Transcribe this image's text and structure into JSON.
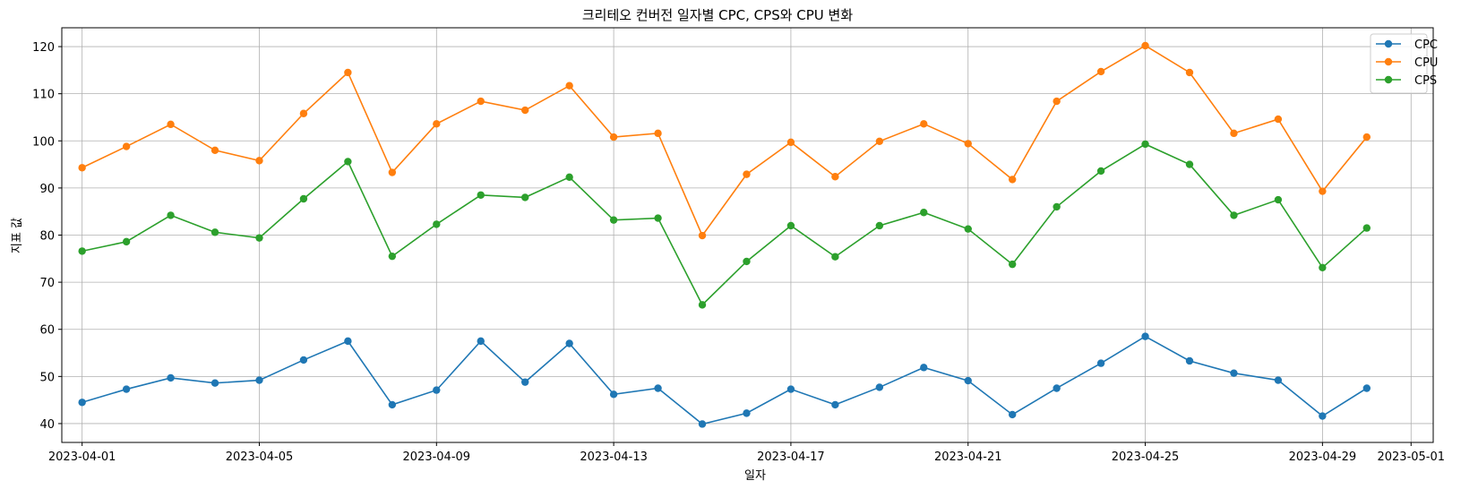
{
  "chart_data": {
    "type": "line",
    "title": "크리테오 컨버전 일자별 CPC, CPS와 CPU 변화",
    "xlabel": "일자",
    "ylabel": "지표 값",
    "grid": true,
    "legend_position": "top-right",
    "x_tick_labels": [
      "2023-04-01",
      "2023-04-05",
      "2023-04-09",
      "2023-04-13",
      "2023-04-17",
      "2023-04-21",
      "2023-04-25",
      "2023-04-29",
      "2023-05-01"
    ],
    "y_ticks": [
      40,
      50,
      60,
      70,
      80,
      90,
      100,
      110,
      120
    ],
    "ylim": [
      36,
      124
    ],
    "xlim": [
      "2023-03-31T13:00",
      "2023-05-01T12:00"
    ],
    "x": [
      "2023-04-01",
      "2023-04-02",
      "2023-04-03",
      "2023-04-04",
      "2023-04-05",
      "2023-04-06",
      "2023-04-07",
      "2023-04-08",
      "2023-04-09",
      "2023-04-10",
      "2023-04-11",
      "2023-04-12",
      "2023-04-13",
      "2023-04-14",
      "2023-04-15",
      "2023-04-16",
      "2023-04-17",
      "2023-04-18",
      "2023-04-19",
      "2023-04-20",
      "2023-04-21",
      "2023-04-22",
      "2023-04-23",
      "2023-04-24",
      "2023-04-25",
      "2023-04-26",
      "2023-04-27",
      "2023-04-28",
      "2023-04-29",
      "2023-04-30"
    ],
    "series": [
      {
        "name": "CPC",
        "color": "#1f77b4",
        "values": [
          44.5,
          47.3,
          49.7,
          48.6,
          49.2,
          53.5,
          57.5,
          44.0,
          47.1,
          57.5,
          48.8,
          57.0,
          46.2,
          47.5,
          39.9,
          42.2,
          47.3,
          44.0,
          47.7,
          51.9,
          49.1,
          41.9,
          47.5,
          52.8,
          58.5,
          53.3,
          50.7,
          49.2,
          41.6,
          47.5
        ]
      },
      {
        "name": "CPU",
        "color": "#ff7f0e",
        "values": [
          94.3,
          98.8,
          103.5,
          98.0,
          95.8,
          105.8,
          114.5,
          93.3,
          103.6,
          108.4,
          106.5,
          111.7,
          100.8,
          101.6,
          79.9,
          92.9,
          99.7,
          92.4,
          99.9,
          103.6,
          99.4,
          91.8,
          108.4,
          114.7,
          120.2,
          114.5,
          101.6,
          104.6,
          89.3,
          100.8
        ]
      },
      {
        "name": "CPS",
        "color": "#2ca02c",
        "values": [
          76.6,
          78.6,
          84.2,
          80.6,
          79.4,
          87.7,
          95.6,
          75.5,
          82.3,
          88.5,
          88.0,
          92.3,
          83.2,
          83.6,
          65.2,
          74.4,
          82.0,
          75.4,
          82.0,
          84.8,
          81.3,
          73.8,
          86.0,
          93.6,
          99.3,
          95.0,
          84.2,
          87.5,
          73.1,
          81.5
        ]
      }
    ]
  }
}
